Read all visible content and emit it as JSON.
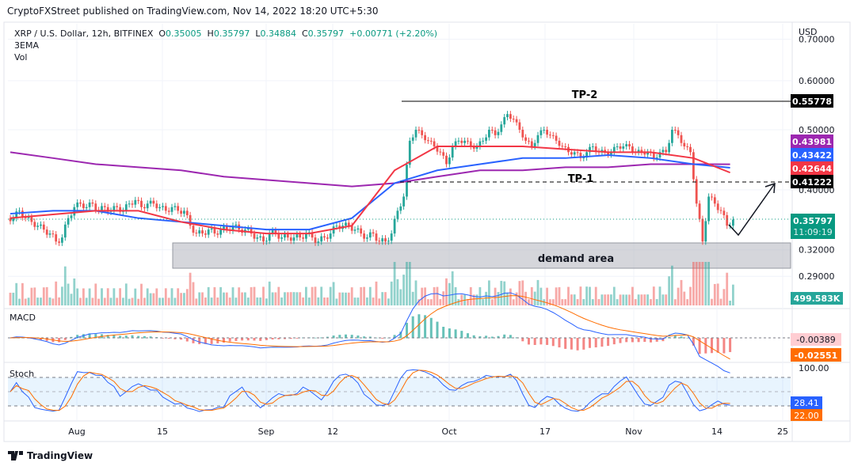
{
  "publisher_line": "CryptoFXStreet published on TradingView.com, Nov 14, 2022 18:20 UTC+5:30",
  "legend": {
    "symbol": "XRP / U.S. Dollar, 12h, BITFINEX",
    "o_label": "O",
    "o": "0.35005",
    "h_label": "H",
    "h": "0.35797",
    "l_label": "L",
    "l": "0.34884",
    "c_label": "C",
    "c": "0.35797",
    "change": "+0.00771 (+2.20%)",
    "indicator1": "3EMA",
    "indicator2": "Vol"
  },
  "axis": {
    "currency": "USD",
    "price_ticks": [
      "0.70000",
      "0.60000",
      "0.50000",
      "0.40000",
      "0.32000",
      "0.29000"
    ],
    "time_ticks": [
      "Aug",
      "15",
      "Sep",
      "12",
      "Oct",
      "17",
      "Nov",
      "14",
      "25"
    ],
    "stoch_top": "100.00"
  },
  "badges": {
    "tp2": "0.55778",
    "ema_purple": "0.43981",
    "ema_blue": "0.43422",
    "ema_red": "0.42644",
    "tp1": "0.41222",
    "last_price": "0.35797",
    "countdown": "11:09:19",
    "volume": "499.583K",
    "macd_hist": "-0.00389",
    "macd_signal": "-0.02551",
    "stoch_k": "28.41",
    "stoch_d": "22.00"
  },
  "annotations": {
    "tp2": "TP-2",
    "tp1": "TP-1",
    "demand": "demand area"
  },
  "panes": {
    "macd": "MACD",
    "stoch": "Stoch"
  },
  "footer": {
    "brand": "TradingView"
  },
  "colors": {
    "up": "#26a69a",
    "down": "#ef5350",
    "ema_purple": "#9c27b0",
    "ema_blue": "#2962ff",
    "ema_red": "#f23645",
    "orange": "#ff6d00",
    "last": "#089981"
  },
  "chart_data": {
    "type": "candlestick",
    "scale": "log",
    "start_date": "Jul 19",
    "closes": [
      0.36,
      0.37,
      0.36,
      0.355,
      0.35,
      0.345,
      0.34,
      0.33,
      0.335,
      0.36,
      0.375,
      0.38,
      0.375,
      0.38,
      0.37,
      0.375,
      0.37,
      0.375,
      0.37,
      0.38,
      0.385,
      0.375,
      0.38,
      0.38,
      0.375,
      0.37,
      0.375,
      0.37,
      0.37,
      0.35,
      0.34,
      0.34,
      0.345,
      0.34,
      0.345,
      0.345,
      0.35,
      0.345,
      0.345,
      0.34,
      0.335,
      0.33,
      0.34,
      0.34,
      0.335,
      0.335,
      0.335,
      0.335,
      0.34,
      0.335,
      0.33,
      0.335,
      0.34,
      0.35,
      0.35,
      0.35,
      0.345,
      0.34,
      0.335,
      0.34,
      0.33,
      0.33,
      0.34,
      0.37,
      0.39,
      0.48,
      0.5,
      0.49,
      0.48,
      0.47,
      0.46,
      0.44,
      0.47,
      0.48,
      0.48,
      0.47,
      0.47,
      0.48,
      0.5,
      0.49,
      0.51,
      0.53,
      0.52,
      0.5,
      0.48,
      0.47,
      0.49,
      0.5,
      0.49,
      0.48,
      0.47,
      0.46,
      0.46,
      0.45,
      0.46,
      0.47,
      0.46,
      0.46,
      0.46,
      0.47,
      0.47,
      0.47,
      0.46,
      0.46,
      0.46,
      0.45,
      0.46,
      0.46,
      0.5,
      0.49,
      0.47,
      0.46,
      0.38,
      0.33,
      0.39,
      0.38,
      0.37,
      0.35,
      0.358
    ],
    "ema_weekly": {
      "purple": [
        0.46,
        0.45,
        0.44,
        0.435,
        0.43,
        0.42,
        0.415,
        0.41,
        0.405,
        0.41,
        0.42,
        0.43,
        0.43,
        0.435,
        0.435,
        0.44,
        0.44,
        0.4398
      ],
      "blue": [
        0.366,
        0.37,
        0.37,
        0.36,
        0.355,
        0.35,
        0.345,
        0.345,
        0.36,
        0.41,
        0.43,
        0.44,
        0.45,
        0.45,
        0.455,
        0.45,
        0.44,
        0.4342
      ],
      "red": [
        0.36,
        0.365,
        0.37,
        0.37,
        0.355,
        0.345,
        0.34,
        0.34,
        0.35,
        0.43,
        0.47,
        0.47,
        0.47,
        0.465,
        0.46,
        0.46,
        0.45,
        0.4264
      ]
    }
  }
}
